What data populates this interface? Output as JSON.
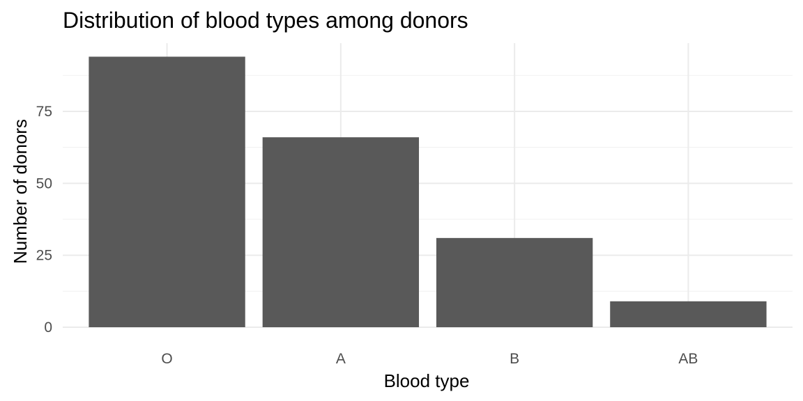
{
  "chart_data": {
    "type": "bar",
    "title": "Distribution of blood types among donors",
    "xlabel": "Blood type",
    "ylabel": "Number of donors",
    "categories": [
      "O",
      "A",
      "B",
      "AB"
    ],
    "values": [
      94,
      66,
      31,
      9
    ],
    "y_ticks": [
      0,
      25,
      50,
      75
    ],
    "y_tick_labels": [
      "0",
      "25",
      "50",
      "75"
    ],
    "ylim": [
      0,
      98.7
    ],
    "grid": true,
    "legend": "none",
    "colors": {
      "bar": "#595959",
      "background": "#ffffff",
      "grid_major": "#ebebeb",
      "grid_minor": "#f3f3f3",
      "tick_text": "#4d4d4d",
      "title_text": "#000000"
    }
  }
}
